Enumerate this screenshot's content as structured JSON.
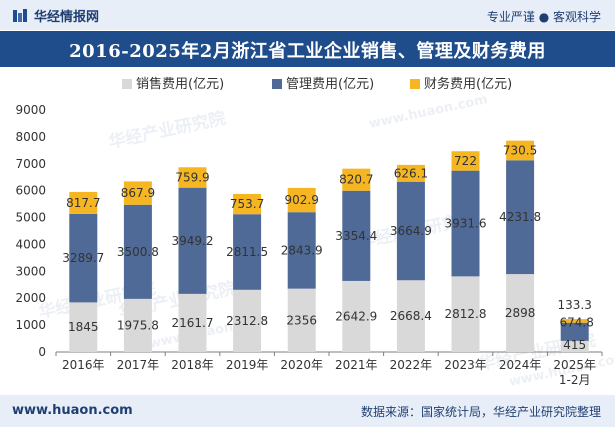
{
  "header": {
    "brand": "华经情报网",
    "slogan": "专业严谨 ● 客观科学"
  },
  "footer": {
    "website": "www.huaon.com",
    "source": "数据来源：国家统计局，华经产业研究院整理"
  },
  "watermarks": [
    "华经产业研究院",
    "www.huaon.com"
  ],
  "colors": {
    "sales": "#d9d9d9",
    "management": "#4f6a96",
    "finance": "#f5b622",
    "title_bg": "#1f4d8c",
    "header_bg": "#e8eef7"
  },
  "chart_data": {
    "type": "bar",
    "stacked": true,
    "title": "2016-2025年2月浙江省工业企业销售、管理及财务费用",
    "categories": [
      "2016年",
      "2017年",
      "2018年",
      "2019年",
      "2020年",
      "2021年",
      "2022年",
      "2023年",
      "2024年",
      "2025年 1-2月"
    ],
    "series": [
      {
        "name": "销售费用(亿元)",
        "values": [
          1845,
          1975.8,
          2161.7,
          2312.8,
          2356,
          2642.9,
          2668.4,
          2812.8,
          2898,
          415
        ]
      },
      {
        "name": "管理费用(亿元)",
        "values": [
          3289.7,
          3500.8,
          3949.2,
          2811.5,
          2843.9,
          3354.4,
          3664.9,
          3931.6,
          4231.8,
          674.8
        ]
      },
      {
        "name": "财务费用(亿元)",
        "values": [
          817.7,
          867.9,
          759.9,
          753.7,
          902.9,
          820.7,
          626.1,
          722,
          730.5,
          133.3
        ]
      }
    ],
    "value_labels": [
      [
        "1845",
        "1975.8",
        "2161.7",
        "2312.8",
        "2356",
        "2642.9",
        "2668.4",
        "2812.8",
        "2898",
        "415"
      ],
      [
        "3289.7",
        "3500.8",
        "3949.2",
        "2811.5",
        "2843.9",
        "3354.4",
        "3664.9",
        "3931.6",
        "4231.8",
        "674.8"
      ],
      [
        "817.7",
        "867.9",
        "759.9",
        "753.7",
        "902.9",
        "820.7",
        "626.1",
        "722",
        "730.5",
        "133.3"
      ]
    ],
    "ylim": [
      0,
      9000
    ],
    "yticks": [
      "0",
      "1000",
      "2000",
      "3000",
      "4000",
      "5000",
      "6000",
      "7000",
      "8000",
      "9000"
    ],
    "xlabel": "",
    "ylabel": "",
    "legend_position": "top-center",
    "grid": false
  }
}
